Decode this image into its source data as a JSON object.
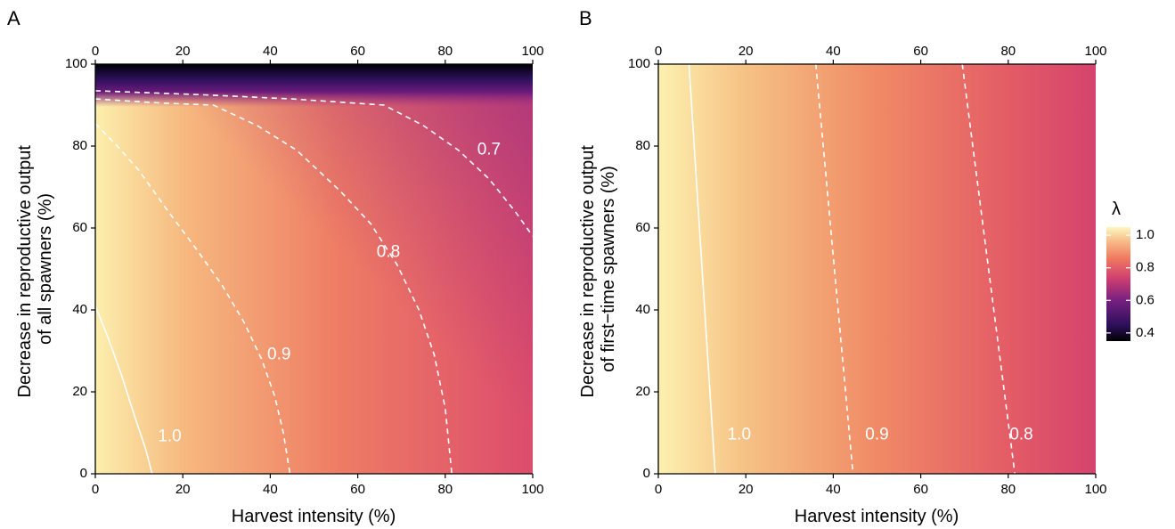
{
  "chart_data": [
    {
      "panel": "A",
      "type": "heatmap",
      "xlabel": "Harvest intensity (%)",
      "ylabel_lines": [
        "Decrease in reproductive output",
        "of all spawners (%)"
      ],
      "xlim": [
        0,
        100
      ],
      "ylim": [
        0,
        100
      ],
      "x_ticks": [
        "0",
        "20",
        "40",
        "60",
        "80",
        "100"
      ],
      "y_ticks": [
        "0",
        "20",
        "40",
        "60",
        "80",
        "100"
      ],
      "top_ticks": [
        "0",
        "20",
        "40",
        "60",
        "80",
        "100"
      ],
      "contours": [
        {
          "level": "1.0",
          "style": "solid",
          "label_at": [
            17,
            9
          ],
          "points": [
            [
              0,
              41
            ],
            [
              3,
              33
            ],
            [
              6,
              24
            ],
            [
              9,
              14
            ],
            [
              11.5,
              6
            ],
            [
              13,
              0
            ]
          ]
        },
        {
          "level": "0.9",
          "style": "dashed",
          "label_at": [
            42,
            29
          ],
          "points": [
            [
              0,
              85.5
            ],
            [
              5,
              80
            ],
            [
              10,
              74
            ],
            [
              16,
              65
            ],
            [
              23,
              55
            ],
            [
              29,
              46
            ],
            [
              34,
              37
            ],
            [
              38,
              28
            ],
            [
              41,
              19
            ],
            [
              43,
              10
            ],
            [
              44.5,
              0
            ]
          ]
        },
        {
          "level": "0.8",
          "style": "dashed",
          "label_at": [
            67,
            54
          ],
          "points": [
            [
              0,
              91.5
            ],
            [
              15,
              90.5
            ],
            [
              27,
              90
            ],
            [
              37,
              85
            ],
            [
              46,
              79
            ],
            [
              56,
              69
            ],
            [
              63,
              61
            ],
            [
              69,
              51
            ],
            [
              74,
              40
            ],
            [
              77.5,
              29
            ],
            [
              80,
              16
            ],
            [
              81.5,
              0
            ]
          ]
        },
        {
          "level": "0.7",
          "style": "dashed",
          "label_at": [
            90,
            79
          ],
          "points": [
            [
              0,
              93.5
            ],
            [
              25,
              92.5
            ],
            [
              45,
              91.5
            ],
            [
              66,
              90
            ],
            [
              75,
              85
            ],
            [
              83,
              79
            ],
            [
              90,
              72
            ],
            [
              96,
              64
            ],
            [
              100,
              58
            ]
          ]
        }
      ]
    },
    {
      "panel": "B",
      "type": "heatmap",
      "xlabel": "Harvest intensity (%)",
      "ylabel_lines": [
        "Decrease in reproductive output",
        "of first−time spawners (%)"
      ],
      "xlim": [
        0,
        100
      ],
      "ylim": [
        0,
        100
      ],
      "x_ticks": [
        "0",
        "20",
        "40",
        "60",
        "80",
        "100"
      ],
      "y_ticks": [
        "0",
        "20",
        "40",
        "60",
        "80",
        "100"
      ],
      "top_ticks": [
        "0",
        "20",
        "40",
        "60",
        "80",
        "100"
      ],
      "contours": [
        {
          "level": "1.0",
          "style": "solid",
          "label_at": [
            18.5,
            9.5
          ],
          "points": [
            [
              7,
              100
            ],
            [
              13,
              0
            ]
          ]
        },
        {
          "level": "0.9",
          "style": "dashed",
          "label_at": [
            50,
            9.5
          ],
          "points": [
            [
              36,
              100
            ],
            [
              44.5,
              0
            ]
          ]
        },
        {
          "level": "0.8",
          "style": "dashed",
          "label_at": [
            83,
            9.5
          ],
          "points": [
            [
              69.5,
              100
            ],
            [
              81.5,
              0
            ]
          ]
        }
      ]
    }
  ],
  "legend": {
    "title": "λ",
    "range": [
      0.35,
      1.05
    ],
    "ticks": [
      "1.0",
      "0.8",
      "0.6",
      "0.4"
    ],
    "tick_values": [
      1.0,
      0.8,
      0.6,
      0.4
    ]
  },
  "colors": {
    "scale_high": "#fcf1b0",
    "scale_mid": "#ef7a63",
    "scale_lower": "#d9436b",
    "scale_low": "#5c1577",
    "scale_lowest": "#000004",
    "contour_line": "#ffffff"
  }
}
